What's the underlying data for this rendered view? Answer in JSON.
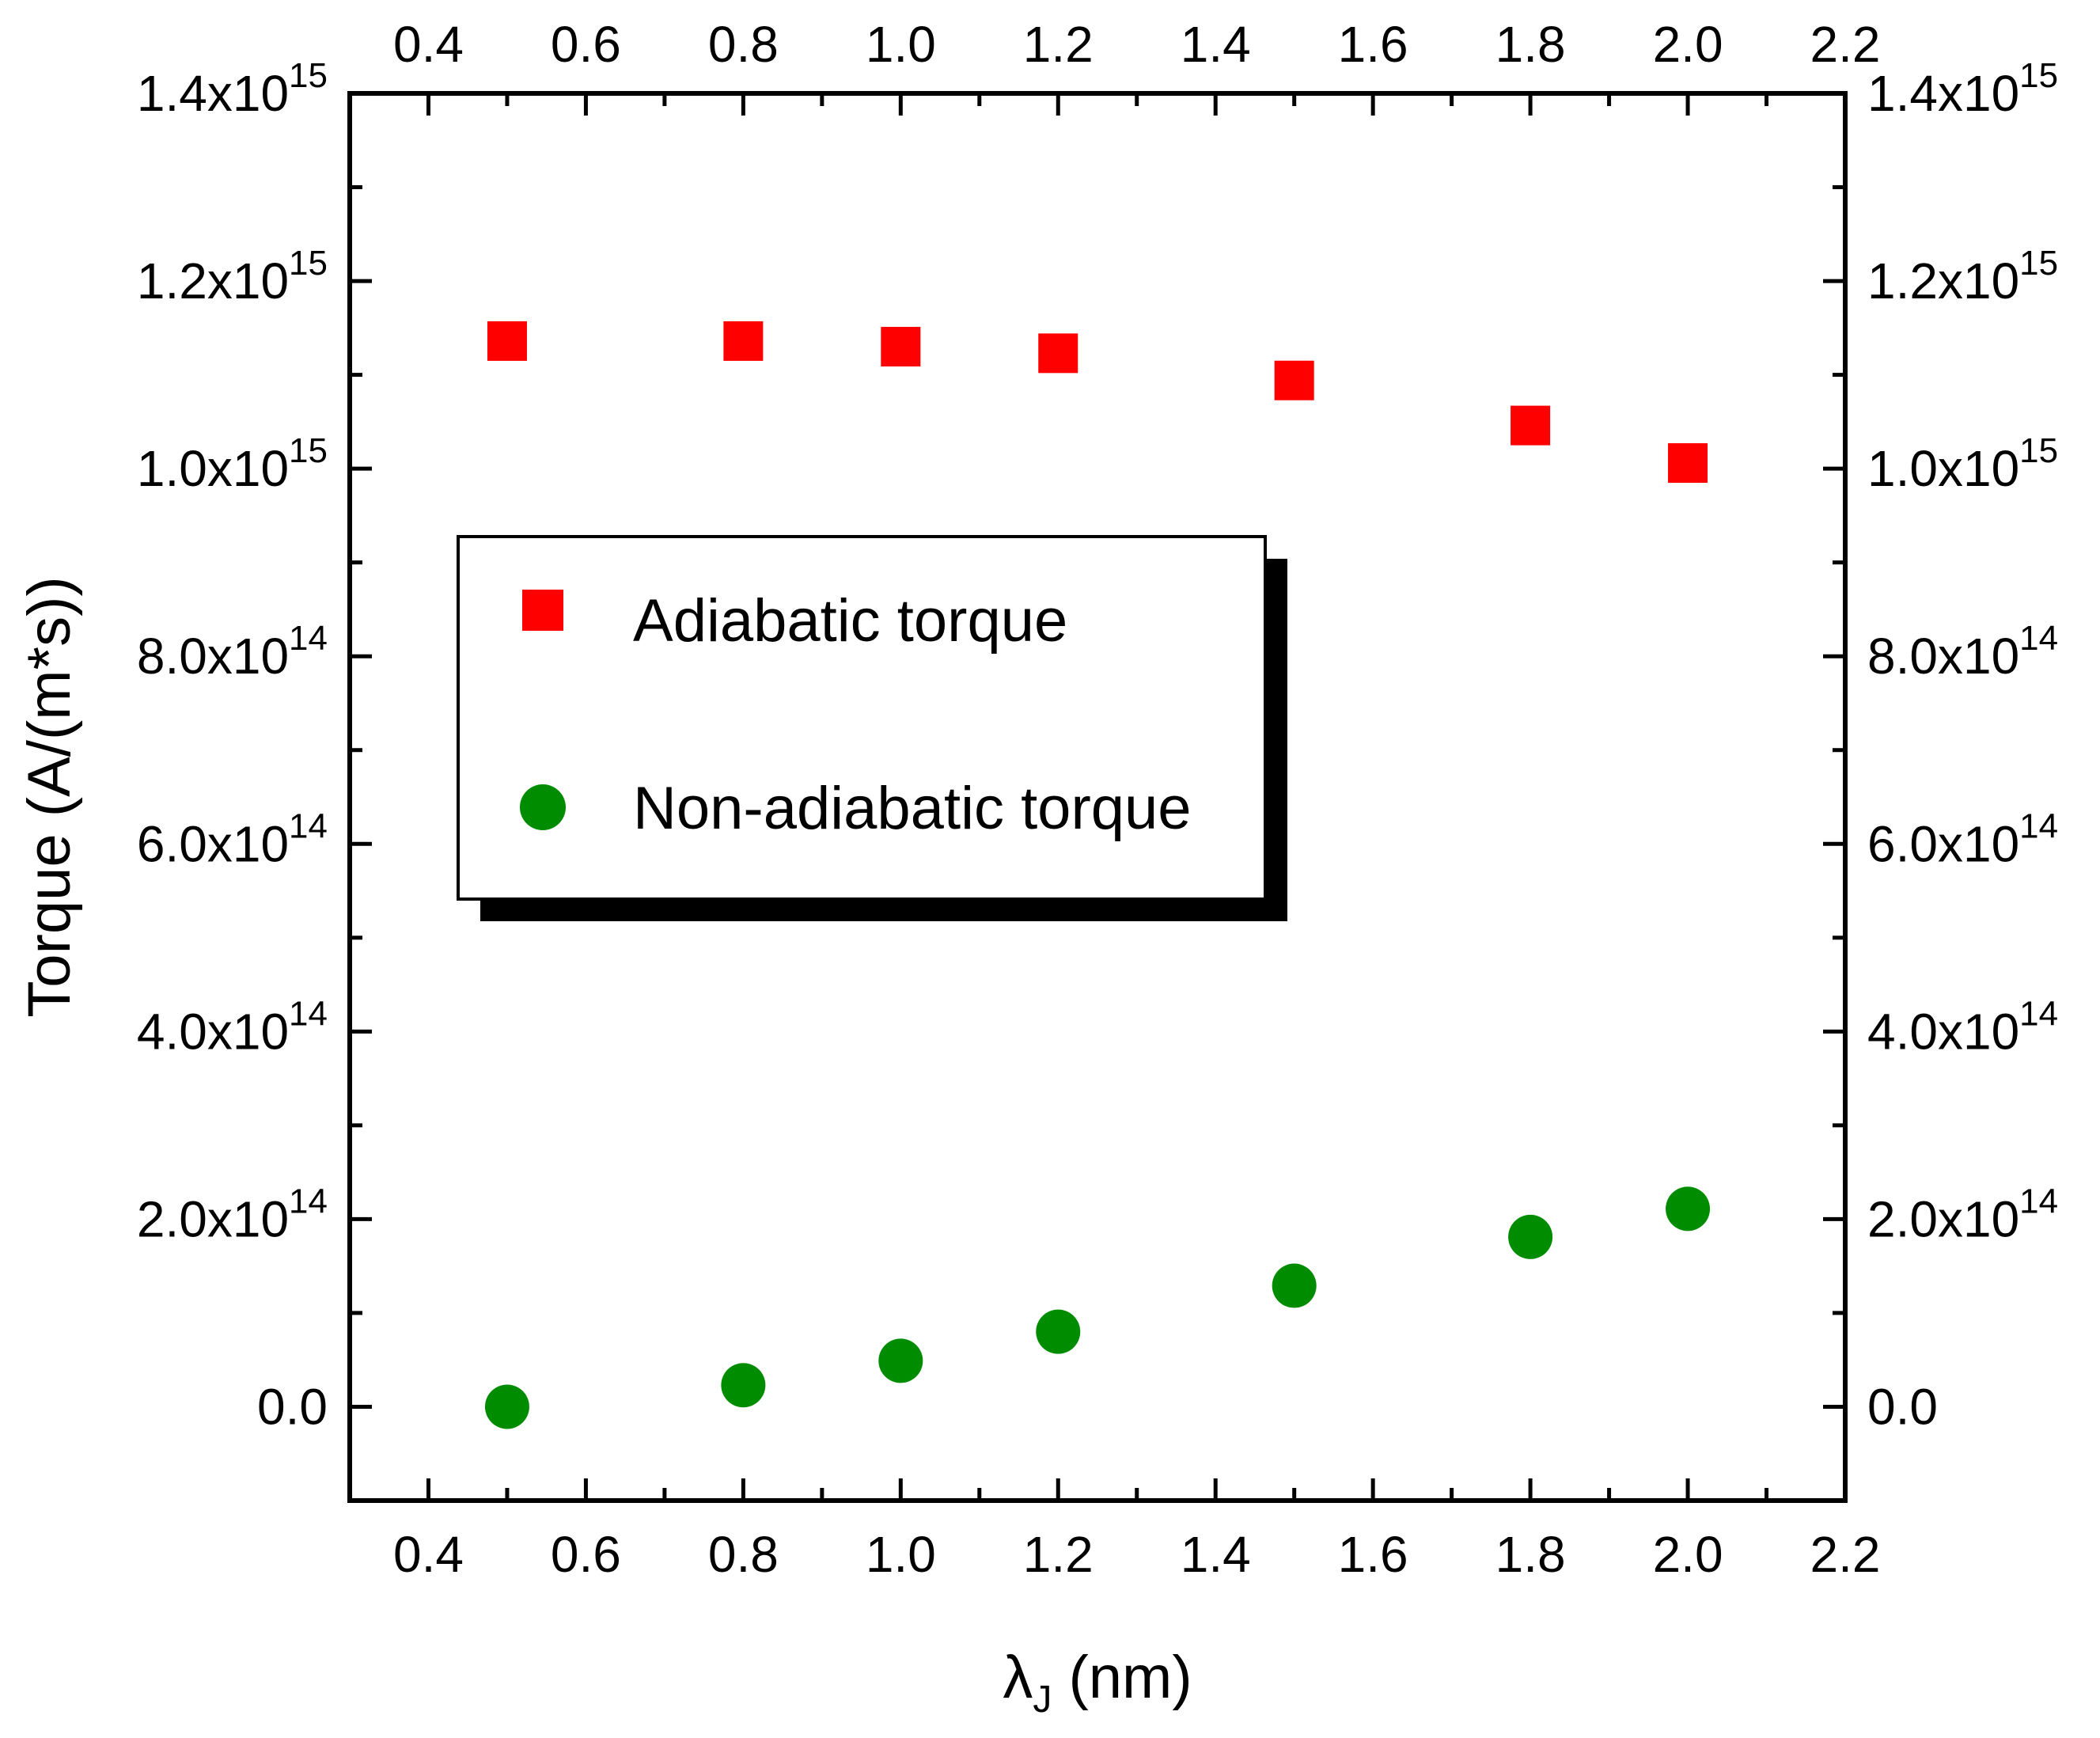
{
  "chart_data": {
    "type": "scatter",
    "xlabel": {
      "main": "λ",
      "sub": "J",
      "rest": " (nm)"
    },
    "ylabel": "Torque (A/(m*s))",
    "xlim": [
      0.3,
      2.2
    ],
    "ylim": [
      -100000000000000.0,
      1400000000000000.0
    ],
    "grid": false,
    "legend_placement": "upper-left-center",
    "x_ticks": [
      "0.4",
      "0.6",
      "0.8",
      "1.0",
      "1.2",
      "1.4",
      "1.6",
      "1.8",
      "2.0",
      "2.2"
    ],
    "y_ticks": [
      {
        "value": 0,
        "mantissa": "0.0",
        "exp": ""
      },
      {
        "value": 200000000000000.0,
        "mantissa": "2.0x10",
        "exp": "14"
      },
      {
        "value": 400000000000000.0,
        "mantissa": "4.0x10",
        "exp": "14"
      },
      {
        "value": 600000000000000.0,
        "mantissa": "6.0x10",
        "exp": "14"
      },
      {
        "value": 800000000000000.0,
        "mantissa": "8.0x10",
        "exp": "14"
      },
      {
        "value": 1000000000000000.0,
        "mantissa": "1.0x10",
        "exp": "15"
      },
      {
        "value": 1200000000000000.0,
        "mantissa": "1.2x10",
        "exp": "15"
      },
      {
        "value": 1400000000000000.0,
        "mantissa": "1.4x10",
        "exp": "15"
      }
    ],
    "x": [
      0.5,
      0.8,
      1.0,
      1.2,
      1.5,
      1.8,
      2.0
    ],
    "series": [
      {
        "name": "Adiabatic torque",
        "marker": "square",
        "color": "#ff0000",
        "values": [
          1136000000000000.0,
          1136000000000000.0,
          1130000000000000.0,
          1123000000000000.0,
          1094000000000000.0,
          1046000000000000.0,
          1006000000000000.0
        ]
      },
      {
        "name": "Non-adiabatic torque",
        "marker": "circle",
        "color": "#008c00",
        "values": [
          0,
          23000000000000.0,
          49000000000000.0,
          80000000000000.0,
          129000000000000.0,
          181000000000000.0,
          211000000000000.0
        ]
      }
    ]
  }
}
